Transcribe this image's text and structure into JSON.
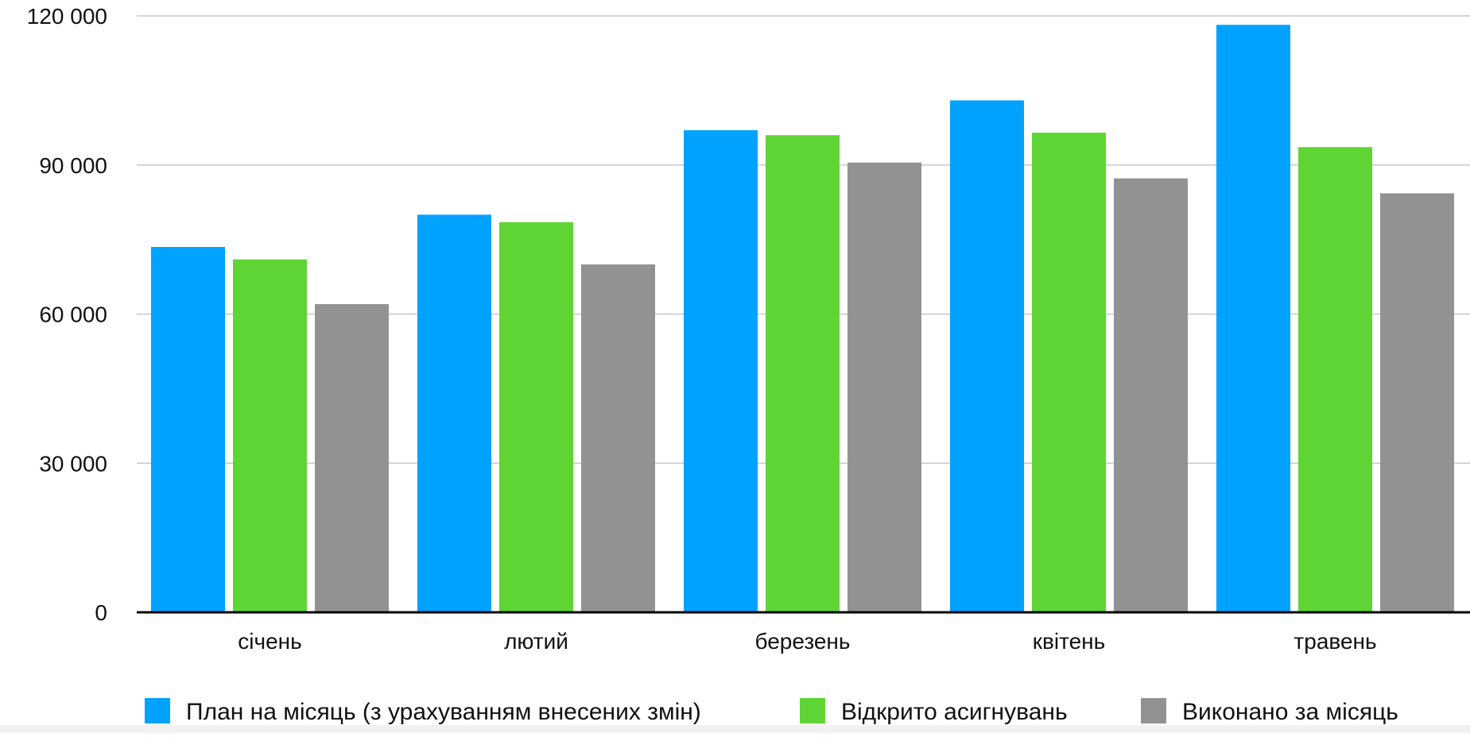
{
  "chart_data": {
    "type": "bar",
    "categories": [
      "січень",
      "лютий",
      "березень",
      "квітень",
      "травень"
    ],
    "series": [
      {
        "name": "План на місяць (з урахуванням внесених змін)",
        "color": "#00a2ff",
        "values": [
          73500,
          80000,
          97000,
          103000,
          118200
        ]
      },
      {
        "name": "Відкрито асигнувань",
        "color": "#5ed534",
        "values": [
          71000,
          78500,
          96000,
          96500,
          93600
        ]
      },
      {
        "name": "Виконано за місяць",
        "color": "#929292",
        "values": [
          62000,
          70000,
          90500,
          87300,
          84300
        ]
      }
    ],
    "y_ticks": [
      0,
      30000,
      60000,
      90000,
      120000
    ],
    "y_tick_labels": [
      "0",
      "30 000",
      "60 000",
      "90 000",
      "120 000"
    ],
    "ylim": [
      0,
      120000
    ],
    "grid": true,
    "legend_position": "bottom",
    "title": "",
    "xlabel": "",
    "ylabel": ""
  }
}
